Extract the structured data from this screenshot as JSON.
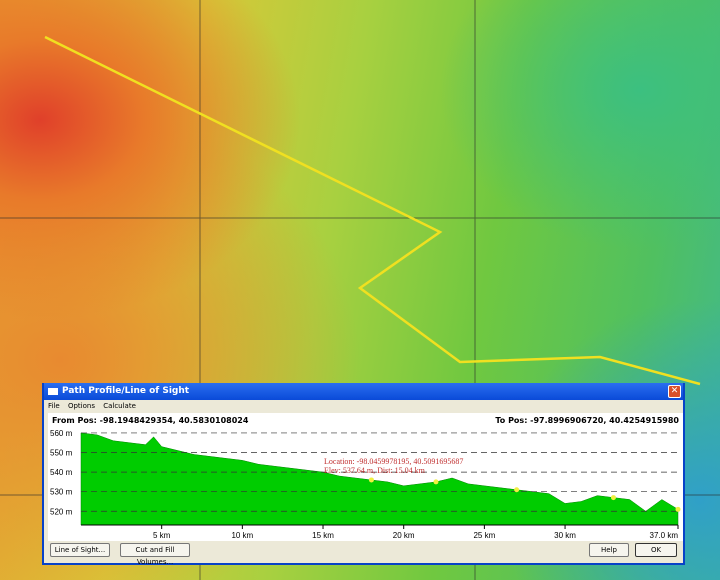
{
  "window": {
    "title": "Path Profile/Line of Sight",
    "close_icon": "close-icon"
  },
  "menu": [
    "File",
    "Options",
    "Calculate"
  ],
  "from_pos": "From Pos: -98.1948429354, 40.5830108024",
  "to_pos": "To Pos: -97.8996906720, 40.4254915980",
  "cursor": {
    "location": "Location: -98.0459978195, 40.5091695687",
    "elev": "Elev: 537.64 m, Dist: 15.04 km"
  },
  "buttons": {
    "los": "Line of Sight...",
    "cutfill": "Cut and Fill Volumes...",
    "help": "Help",
    "ok": "OK"
  },
  "colors": {
    "profile_fill": "#00cc00",
    "path_line": "#f0e020",
    "cursor_text": "#c03030"
  },
  "chart_data": {
    "type": "area",
    "xlabel": "",
    "ylabel": "",
    "xlim": [
      0,
      37
    ],
    "ylim": [
      513,
      562
    ],
    "x_ticks": [
      "5 km",
      "10 km",
      "15 km",
      "20 km",
      "25 km",
      "30 km",
      "37.0 km"
    ],
    "x_tick_values": [
      5,
      10,
      15,
      20,
      25,
      30,
      37
    ],
    "y_ticks": [
      "560 m",
      "550 m",
      "540 m",
      "530 m",
      "520 m"
    ],
    "y_tick_values": [
      560,
      550,
      540,
      530,
      520
    ],
    "x": [
      0,
      1,
      2,
      3,
      4,
      4.5,
      5,
      6,
      7,
      8,
      9,
      10,
      11,
      12,
      13,
      14,
      15,
      16,
      17,
      18,
      19,
      20,
      21,
      22,
      23,
      24,
      25,
      26,
      27,
      28,
      29,
      30,
      31,
      32,
      33,
      34,
      35,
      36,
      37
    ],
    "y": [
      560,
      559,
      556,
      555,
      554,
      558,
      553,
      551,
      549,
      548,
      547,
      546,
      544,
      543,
      542,
      541,
      540,
      538,
      537,
      536,
      535,
      533,
      534,
      535,
      537,
      534,
      533,
      532,
      531,
      530,
      529,
      524,
      525,
      528,
      527,
      526,
      520,
      526,
      521
    ]
  }
}
